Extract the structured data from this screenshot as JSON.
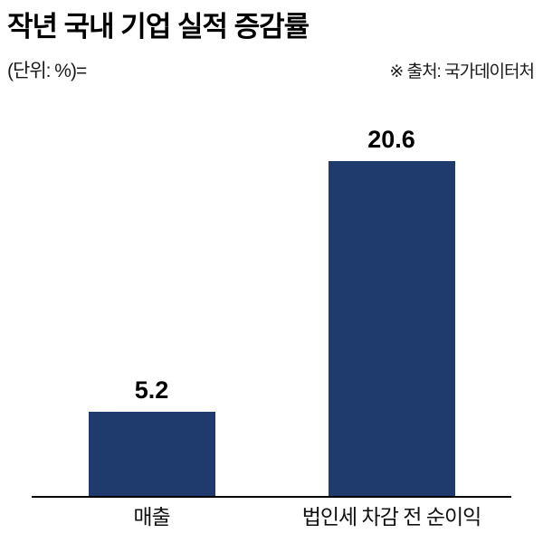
{
  "header": {
    "title": "작년 국내 기업 실적 증감률",
    "unit": "(단위: %)=",
    "source": "※ 출처: 국가데이터처"
  },
  "chart_data": {
    "type": "bar",
    "title": "작년 국내 기업 실적 증감률",
    "categories": [
      "매출",
      "법인세 차감 전 순이익"
    ],
    "values": [
      5.2,
      20.6
    ],
    "value_labels": [
      "5.2",
      "20.6"
    ],
    "xlabel": "",
    "ylabel": "",
    "unit": "%",
    "ylim": [
      0,
      22
    ],
    "grid": false,
    "legend": false,
    "bar_color": "#1f3a6d",
    "baseline_color": "#000000"
  }
}
